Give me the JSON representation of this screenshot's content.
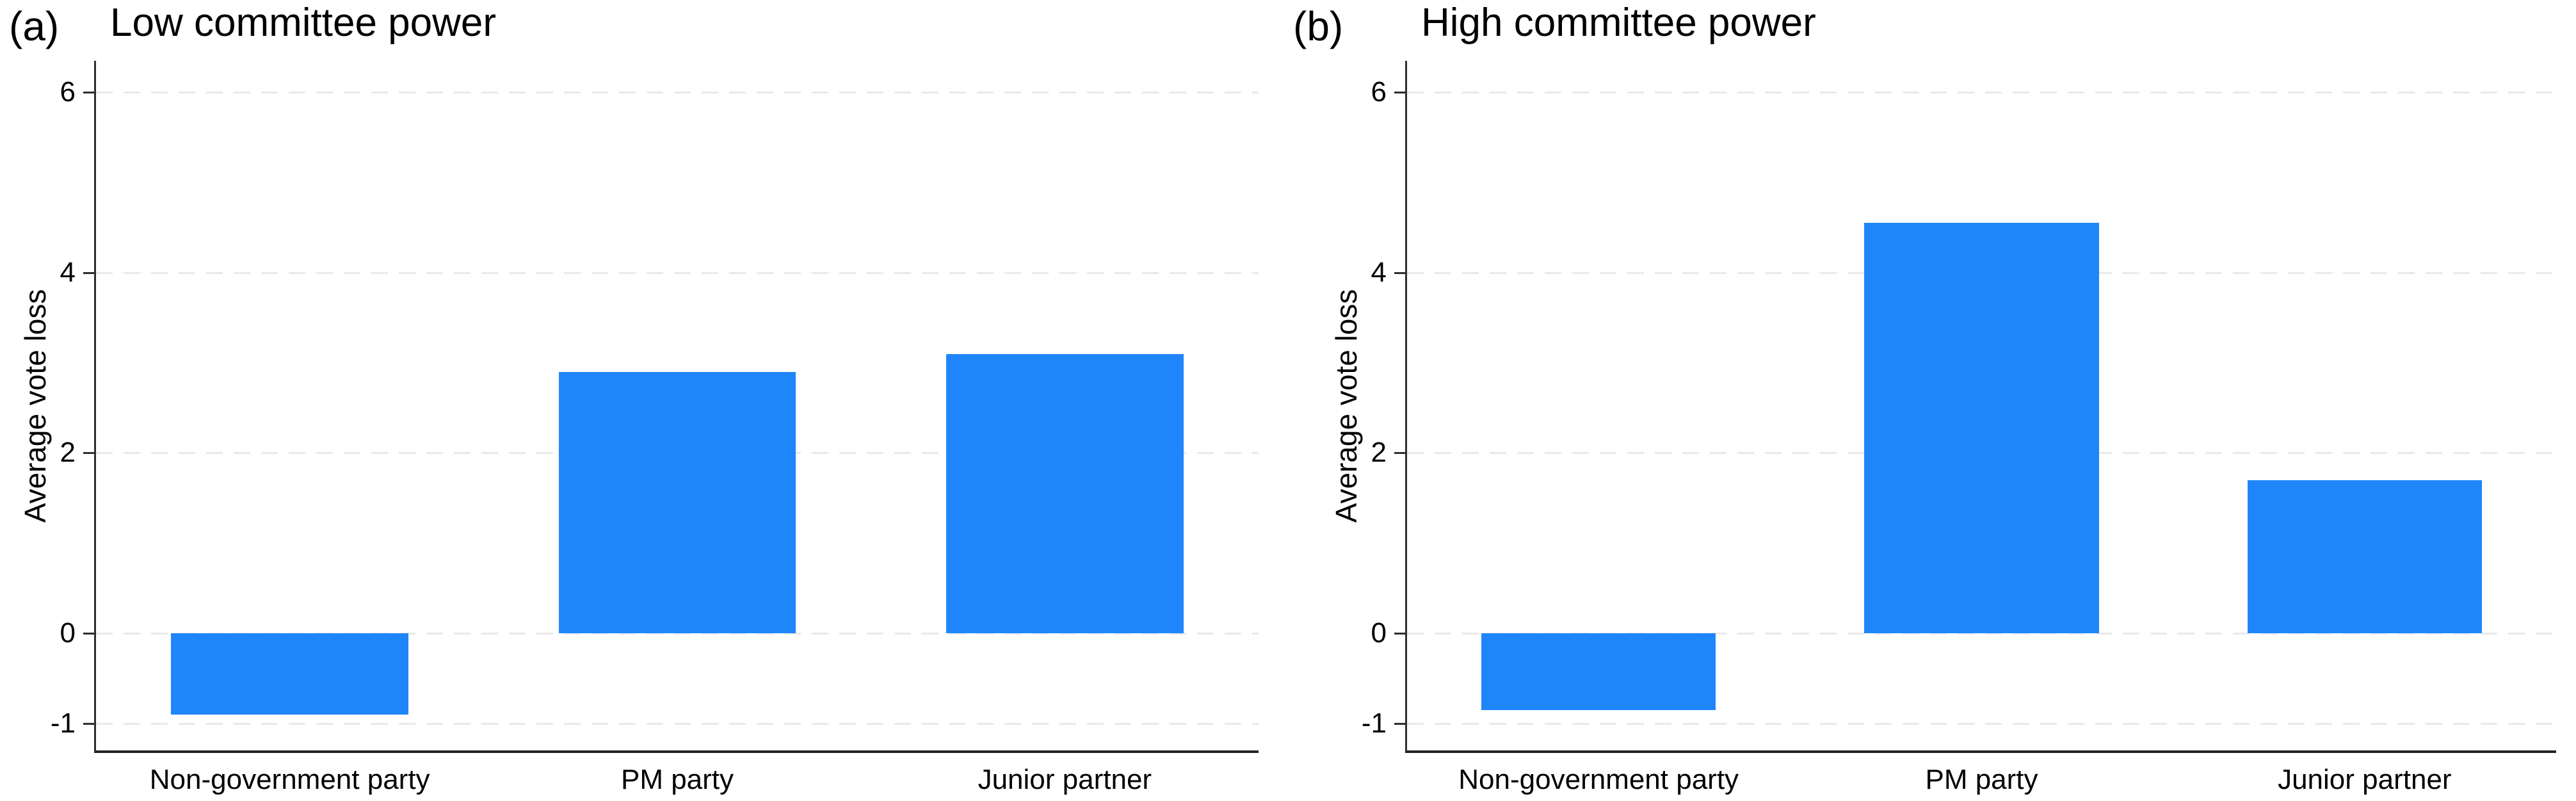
{
  "chart_data": [
    {
      "type": "bar",
      "panel_letter": "(a)",
      "title": "Low committee power",
      "ylabel": "Average vote loss",
      "categories": [
        "Non-government party",
        "PM party",
        "Junior partner"
      ],
      "values": [
        -0.9,
        2.9,
        3.1
      ],
      "yticks": [
        -1,
        0,
        2,
        4,
        6
      ],
      "ylim": [
        -1.3,
        6.35
      ],
      "grid": "horizontal-dashed",
      "legend_position": "none",
      "bar_color": "#1e86fa",
      "gridline_color": "#e9e9e9",
      "axis_color": "#2e2e2e"
    },
    {
      "type": "bar",
      "panel_letter": "(b)",
      "title": "High committee power",
      "ylabel": "Average vote loss",
      "categories": [
        "Non-government party",
        "PM party",
        "Junior partner"
      ],
      "values": [
        -0.85,
        4.55,
        1.7
      ],
      "yticks": [
        -1,
        0,
        2,
        4,
        6
      ],
      "ylim": [
        -1.3,
        6.35
      ],
      "grid": "horizontal-dashed",
      "legend_position": "none",
      "bar_color": "#1e86fa",
      "gridline_color": "#e9e9e9",
      "axis_color": "#2e2e2e"
    }
  ]
}
